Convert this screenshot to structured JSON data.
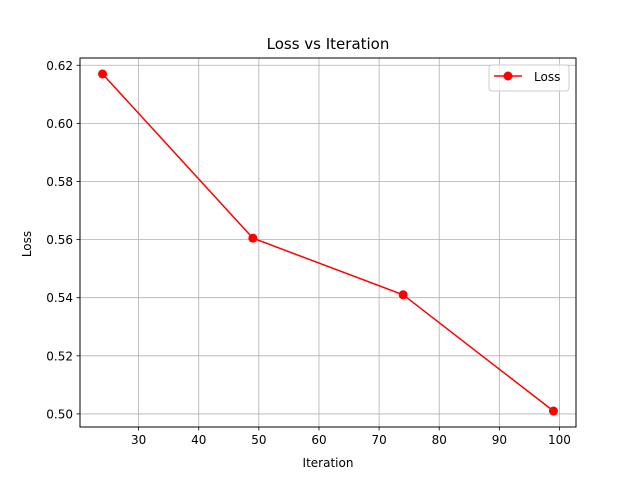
{
  "chart_data": {
    "type": "line",
    "title": "Loss vs Iteration",
    "xlabel": "Iteration",
    "ylabel": "Loss",
    "xlim": [
      20.25,
      102.75
    ],
    "ylim": [
      0.4955,
      0.6225
    ],
    "x_ticks": [
      30,
      40,
      50,
      60,
      70,
      80,
      90,
      100
    ],
    "x_tick_labels": [
      "30",
      "40",
      "50",
      "60",
      "70",
      "80",
      "90",
      "100"
    ],
    "y_ticks": [
      0.5,
      0.52,
      0.54,
      0.56,
      0.58,
      0.6,
      0.62
    ],
    "y_tick_labels": [
      "0.50",
      "0.52",
      "0.54",
      "0.56",
      "0.58",
      "0.60",
      "0.62"
    ],
    "grid": true,
    "legend_position": "top-right",
    "series": [
      {
        "name": "Loss",
        "color": "#ff0000",
        "marker": "circle",
        "x": [
          24,
          49,
          74,
          99
        ],
        "values": [
          0.617,
          0.5605,
          0.541,
          0.501
        ]
      }
    ]
  }
}
